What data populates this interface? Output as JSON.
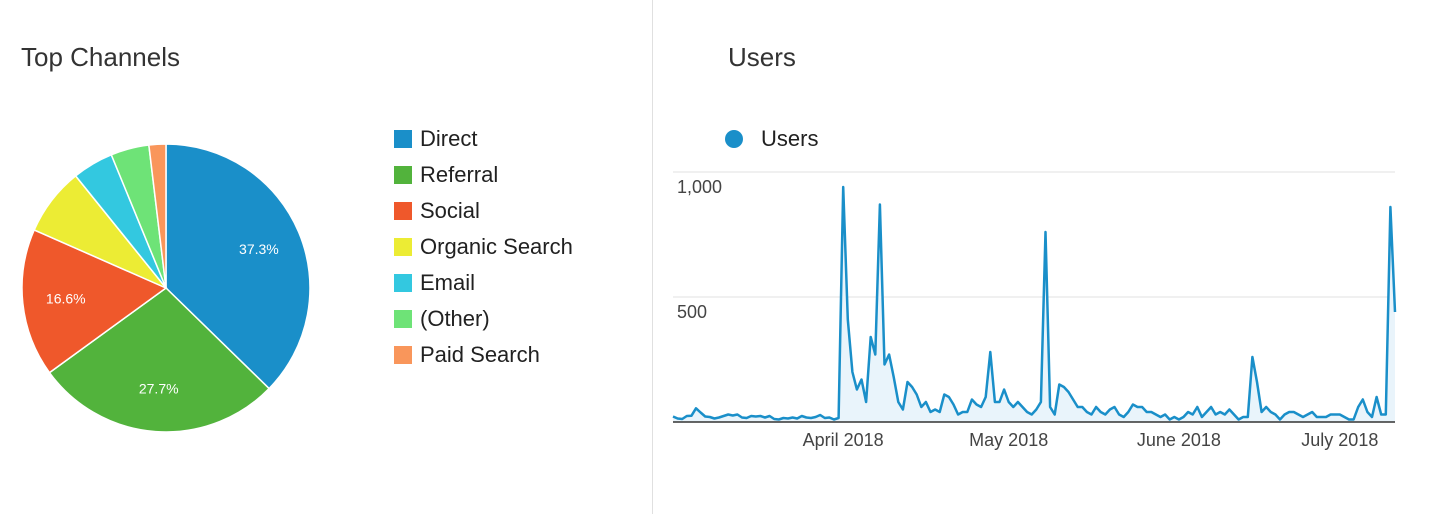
{
  "left_panel": {
    "title": "Top Channels"
  },
  "right_panel": {
    "title": "Users"
  },
  "chart_data": [
    {
      "type": "pie",
      "title": "Top Channels",
      "slices": [
        {
          "label": "Direct",
          "value": 37.3,
          "color": "#1a8fc9",
          "show_label": true
        },
        {
          "label": "Referral",
          "value": 27.7,
          "color": "#52b33c",
          "show_label": true
        },
        {
          "label": "Social",
          "value": 16.6,
          "color": "#ef582b",
          "show_label": true
        },
        {
          "label": "Organic Search",
          "value": 7.6,
          "color": "#ecec34",
          "show_label": false
        },
        {
          "label": "Email",
          "value": 4.6,
          "color": "#33c8e0",
          "show_label": false
        },
        {
          "label": "(Other)",
          "value": 4.3,
          "color": "#6ee377",
          "show_label": false
        },
        {
          "label": "Paid Search",
          "value": 1.9,
          "color": "#f9965b",
          "show_label": false
        }
      ],
      "legend": "right"
    },
    {
      "type": "area",
      "title": "Users",
      "series": [
        {
          "name": "Users",
          "color": "#1a8fc9",
          "fill": "#e9f4fb",
          "values": [
            22,
            14,
            12,
            24,
            25,
            55,
            38,
            22,
            20,
            14,
            18,
            24,
            30,
            26,
            30,
            18,
            16,
            24,
            22,
            24,
            18,
            24,
            12,
            10,
            16,
            14,
            18,
            14,
            24,
            18,
            16,
            20,
            28,
            16,
            18,
            10,
            16,
            940,
            410,
            200,
            130,
            170,
            80,
            340,
            270,
            870,
            230,
            270,
            180,
            80,
            50,
            160,
            140,
            110,
            60,
            80,
            40,
            50,
            40,
            110,
            100,
            70,
            30,
            40,
            40,
            90,
            70,
            60,
            100,
            280,
            80,
            80,
            130,
            80,
            60,
            80,
            60,
            40,
            30,
            50,
            80,
            760,
            60,
            30,
            150,
            140,
            120,
            90,
            60,
            60,
            40,
            30,
            60,
            40,
            30,
            50,
            60,
            30,
            20,
            40,
            70,
            60,
            60,
            40,
            40,
            30,
            20,
            30,
            10,
            20,
            10,
            20,
            40,
            30,
            60,
            20,
            40,
            60,
            30,
            40,
            30,
            50,
            30,
            10,
            20,
            20,
            260,
            160,
            40,
            60,
            40,
            30,
            10,
            30,
            40,
            40,
            30,
            20,
            30,
            40,
            20,
            20,
            20,
            30,
            30,
            30,
            20,
            10,
            10,
            60,
            90,
            40,
            20,
            100,
            30,
            30,
            860,
            440
          ]
        }
      ],
      "x_tick_labels": [
        "April 2018",
        "May 2018",
        "June 2018",
        "July 2018"
      ],
      "x_tick_index": [
        37,
        73,
        110,
        145
      ],
      "y_ticks": [
        {
          "value": 1000,
          "label": "1,000"
        },
        {
          "value": 500,
          "label": "500"
        }
      ],
      "ylim": [
        0,
        1000
      ],
      "legend": "top-left"
    }
  ]
}
